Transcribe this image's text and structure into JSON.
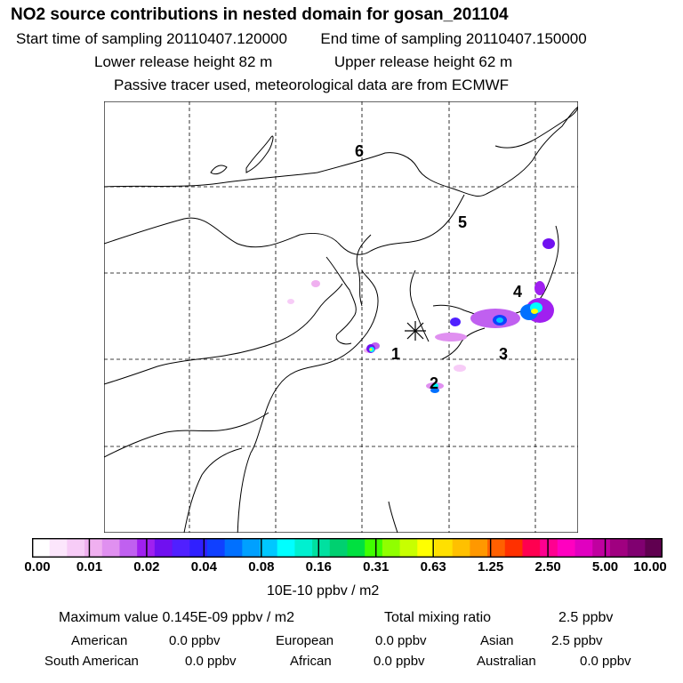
{
  "header": {
    "title": "NO2 source contributions in nested domain for gosan_201104",
    "start_label": "Start time of sampling 20110407.120000",
    "end_label": "End time of sampling 20110407.150000",
    "lower_label": "Lower release height   82 m",
    "upper_label": "Upper release height   62 m",
    "note": "Passive tracer used, meteorological data are from ECMWF"
  },
  "map": {
    "region_labels": [
      "1",
      "2",
      "3",
      "4",
      "5",
      "6"
    ],
    "receptor_symbol": "asterisk"
  },
  "colorbar": {
    "ticks": [
      "0.00",
      "0.01",
      "0.02",
      "0.04",
      "0.08",
      "0.16",
      "0.31",
      "0.63",
      "1.25",
      "2.50",
      "5.00",
      "10.00"
    ],
    "units": "10E-10 ppbv / m2",
    "colors": [
      "#ffffff",
      "#fce6fc",
      "#f7ccf7",
      "#f0b0f0",
      "#e090f0",
      "#c060f0",
      "#a020f0",
      "#7010f0",
      "#5020ff",
      "#3020ff",
      "#1040ff",
      "#0070ff",
      "#00a0ff",
      "#00c8ff",
      "#00ffff",
      "#00f0d0",
      "#00e0a0",
      "#00d070",
      "#00e040",
      "#40ff00",
      "#90ff00",
      "#c8ff00",
      "#ffff00",
      "#ffe000",
      "#ffc000",
      "#ff9800",
      "#ff6000",
      "#ff3000",
      "#ff0050",
      "#ff0090",
      "#ff00c0",
      "#e000c0",
      "#c000a0",
      "#a00080",
      "#800070",
      "#600050"
    ]
  },
  "stats": {
    "max_label": "Maximum value  0.145E-09 ppbv / m2",
    "total_label": "Total mixing ratio",
    "total_value": "2.5 ppbv",
    "american_label": "American",
    "american_value": "0.0 ppbv",
    "european_label": "European",
    "european_value": "0.0 ppbv",
    "asian_label": "Asian",
    "asian_value": "2.5 ppbv",
    "south_american_label": "South American",
    "south_american_value": "0.0 ppbv",
    "african_label": "African",
    "african_value": "0.0 ppbv",
    "australian_label": "Australian",
    "australian_value": "0.0 ppbv"
  }
}
